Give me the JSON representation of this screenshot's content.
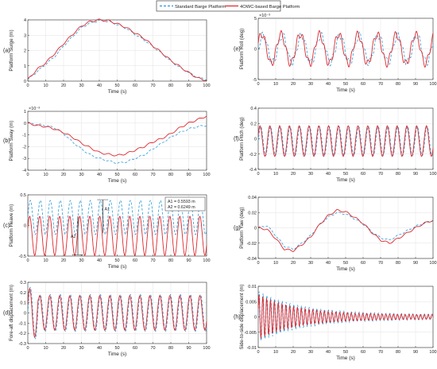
{
  "legend": {
    "items": [
      {
        "name": "Standard Barge Platform",
        "color": "#2a9ad8",
        "dash": true
      },
      {
        "name": "4OWC-based Barge Platform",
        "color": "#e0282d",
        "dash": false
      }
    ]
  },
  "chart_data": [
    {
      "id": "a",
      "type": "line",
      "panel_label": "(a)",
      "xlabel": "Time (s)",
      "ylabel": "Platform Surge (m)",
      "xlim": [
        0,
        100
      ],
      "ylim": [
        0,
        4
      ],
      "xticks": [
        0,
        10,
        20,
        30,
        40,
        50,
        60,
        70,
        80,
        90,
        100
      ],
      "yticks": [
        0,
        1,
        2,
        3,
        4
      ],
      "ytick_labels": [
        "0",
        "1",
        "2",
        "3",
        "4"
      ],
      "grid": true,
      "series": [
        {
          "name": "Standard Barge Platform",
          "x": [
            0,
            5,
            10,
            15,
            20,
            25,
            30,
            35,
            40,
            45,
            50,
            55,
            60,
            65,
            70,
            75,
            80,
            85,
            90,
            95,
            100
          ],
          "y": [
            0.1,
            0.6,
            1.1,
            1.6,
            2.3,
            2.9,
            3.5,
            3.8,
            3.95,
            3.9,
            3.7,
            3.45,
            3.05,
            2.7,
            2.25,
            1.8,
            1.3,
            0.9,
            0.55,
            0.25,
            0.1
          ]
        },
        {
          "name": "4OWC-based Barge Platform",
          "x": [
            0,
            5,
            10,
            15,
            20,
            25,
            30,
            35,
            40,
            45,
            50,
            55,
            60,
            65,
            70,
            75,
            80,
            85,
            90,
            95,
            100
          ],
          "y": [
            0.1,
            0.75,
            1.2,
            1.8,
            2.45,
            3.05,
            3.6,
            3.9,
            4.0,
            3.95,
            3.75,
            3.5,
            3.15,
            2.8,
            2.3,
            1.85,
            1.35,
            0.95,
            0.55,
            0.2,
            0.05
          ]
        }
      ]
    },
    {
      "id": "b",
      "type": "line",
      "panel_label": "(b)",
      "xlabel": "Time (s)",
      "ylabel": "Platform Sway (m)",
      "exponent": "10⁻³",
      "xlim": [
        0,
        100
      ],
      "ylim": [
        -4,
        1
      ],
      "xticks": [
        0,
        10,
        20,
        30,
        40,
        50,
        60,
        70,
        80,
        90,
        100
      ],
      "yticks": [
        -4,
        -3,
        -2,
        -1,
        0,
        1
      ],
      "ytick_labels": [
        "-4",
        "-3",
        "-2",
        "-1",
        "0",
        "1"
      ],
      "grid": true,
      "series": [
        {
          "name": "Standard Barge Platform",
          "x": [
            0,
            5,
            10,
            15,
            20,
            25,
            30,
            35,
            40,
            45,
            50,
            55,
            60,
            65,
            70,
            75,
            80,
            85,
            90,
            95,
            100
          ],
          "y": [
            0,
            -0.1,
            -0.2,
            -0.4,
            -0.9,
            -1.6,
            -2.2,
            -2.7,
            -3.0,
            -3.2,
            -3.4,
            -3.3,
            -3.0,
            -2.7,
            -2.2,
            -1.7,
            -1.2,
            -0.8,
            -0.5,
            -0.3,
            -0.2
          ]
        },
        {
          "name": "4OWC-based Barge Platform",
          "x": [
            0,
            5,
            10,
            15,
            20,
            25,
            30,
            35,
            40,
            45,
            50,
            55,
            60,
            65,
            70,
            75,
            80,
            85,
            90,
            95,
            100
          ],
          "y": [
            0,
            -0.2,
            -0.3,
            -0.5,
            -0.8,
            -1.2,
            -1.7,
            -2.1,
            -2.5,
            -2.65,
            -2.75,
            -2.6,
            -2.3,
            -2.0,
            -1.6,
            -1.3,
            -0.9,
            -0.4,
            0.0,
            0.3,
            0.6
          ]
        }
      ]
    },
    {
      "id": "c",
      "type": "line",
      "panel_label": "(c)",
      "xlabel": "Time (s)",
      "ylabel": "Platform Heave (m)",
      "xlim": [
        0,
        100
      ],
      "ylim": [
        -0.5,
        0.5
      ],
      "xticks": [
        0,
        10,
        20,
        30,
        40,
        50,
        60,
        70,
        80,
        90,
        100
      ],
      "yticks": [
        -0.5,
        0,
        0.5
      ],
      "ytick_labels": [
        "-0.5",
        "0",
        "0.5"
      ],
      "grid": true,
      "annotations": {
        "a1": "A1 = 0.5593 m",
        "a2": "A2 = 0.6249 m",
        "a1_label": "A1",
        "a2_label": "A2"
      },
      "series": [
        {
          "name": "Standard Barge Platform",
          "period": 5.6,
          "offset": 0.13,
          "amplitude": 0.28
        },
        {
          "name": "4OWC-based Barge Platform",
          "period": 5.6,
          "offset": -0.17,
          "amplitude": 0.32
        }
      ]
    },
    {
      "id": "d",
      "type": "line",
      "panel_label": "(d)",
      "xlabel": "Time (s)",
      "ylabel": "Fore-aft displacement  (m)",
      "xlim": [
        0,
        100
      ],
      "ylim": [
        -0.3,
        0.3
      ],
      "xticks": [
        0,
        10,
        20,
        30,
        40,
        50,
        60,
        70,
        80,
        90,
        100
      ],
      "yticks": [
        -0.3,
        -0.2,
        -0.1,
        0,
        0.1,
        0.2,
        0.3
      ],
      "ytick_labels": [
        "-0.3",
        "-0.2",
        "-0.1",
        "0",
        "0.1",
        "0.2",
        "0.3"
      ],
      "grid": true,
      "series": [
        {
          "name": "Standard Barge Platform",
          "period": 5.6,
          "offset": 0,
          "amplitude": 0.18
        },
        {
          "name": "4OWC-based Barge Platform",
          "period": 5.6,
          "offset": 0,
          "amplitude": 0.17
        }
      ]
    },
    {
      "id": "e",
      "type": "line",
      "panel_label": "(e)",
      "xlabel": "Time (s)",
      "ylabel": "Platform Roll (deg)",
      "exponent": "10⁻³",
      "xlim": [
        0,
        100
      ],
      "ylim": [
        -5,
        5
      ],
      "xticks": [
        0,
        10,
        20,
        30,
        40,
        50,
        60,
        70,
        80,
        90,
        100
      ],
      "yticks": [
        -5,
        0,
        5
      ],
      "ytick_labels": [
        "-5",
        "0",
        "5"
      ],
      "grid": true,
      "series": [
        {
          "name": "Standard Barge Platform",
          "period": 11,
          "offset": 0,
          "amplitude": 2.2
        },
        {
          "name": "4OWC-based Barge Platform",
          "period": 11,
          "offset": 0,
          "amplitude": 2.4
        }
      ]
    },
    {
      "id": "f",
      "type": "line",
      "panel_label": "(f)",
      "xlabel": "Time (s)",
      "ylabel": "Platform Pitch (deg)",
      "xlim": [
        0,
        100
      ],
      "ylim": [
        -0.4,
        0.4
      ],
      "xticks": [
        0,
        10,
        20,
        30,
        40,
        50,
        60,
        70,
        80,
        90,
        100
      ],
      "yticks": [
        -0.4,
        -0.2,
        0,
        0.2,
        0.4
      ],
      "ytick_labels": [
        "-0.4",
        "-0.2",
        "0",
        "0.2",
        "0.4"
      ],
      "grid": true,
      "series": [
        {
          "name": "Standard Barge Platform",
          "period": 5.6,
          "offset": -0.03,
          "amplitude": 0.19
        },
        {
          "name": "4OWC-based Barge Platform",
          "period": 5.6,
          "offset": -0.03,
          "amplitude": 0.2
        }
      ]
    },
    {
      "id": "g",
      "type": "line",
      "panel_label": "(g)",
      "xlabel": "Time (s)",
      "ylabel": "Platform Yaw (deg)",
      "xlim": [
        0,
        100
      ],
      "ylim": [
        -0.04,
        0.04
      ],
      "xticks": [
        0,
        10,
        20,
        30,
        40,
        50,
        60,
        70,
        80,
        90,
        100
      ],
      "yticks": [
        -0.04,
        -0.02,
        0,
        0.02,
        0.04
      ],
      "ytick_labels": [
        "-0.04",
        "-0.02",
        "0",
        "0.02",
        "0.04"
      ],
      "grid": true,
      "series": [
        {
          "name": "Standard Barge Platform",
          "x": [
            0,
            5,
            10,
            15,
            20,
            25,
            30,
            35,
            40,
            45,
            50,
            55,
            60,
            65,
            70,
            75,
            80,
            85,
            90,
            95,
            100
          ],
          "y": [
            0,
            0.003,
            -0.01,
            -0.024,
            -0.028,
            -0.02,
            -0.01,
            0.004,
            0.014,
            0.02,
            0.018,
            0.012,
            0.005,
            -0.005,
            -0.013,
            -0.016,
            -0.01,
            -0.004,
            0.002,
            0.006,
            0.01
          ]
        },
        {
          "name": "4OWC-based Barge Platform",
          "x": [
            0,
            5,
            10,
            15,
            20,
            25,
            30,
            35,
            40,
            45,
            50,
            55,
            60,
            65,
            70,
            75,
            80,
            85,
            90,
            95,
            100
          ],
          "y": [
            0,
            -0.002,
            -0.014,
            -0.028,
            -0.03,
            -0.022,
            -0.012,
            0.004,
            0.016,
            0.023,
            0.021,
            0.014,
            0.006,
            -0.006,
            -0.016,
            -0.02,
            -0.014,
            -0.007,
            0.0,
            0.006,
            0.01
          ]
        }
      ]
    },
    {
      "id": "h",
      "type": "line",
      "panel_label": "(h)",
      "xlabel": "Time (s)",
      "ylabel": "Side-to-side displacement  (m)",
      "xlim": [
        0,
        100
      ],
      "ylim": [
        -0.01,
        0.01
      ],
      "xticks": [
        0,
        10,
        20,
        30,
        40,
        50,
        60,
        70,
        80,
        90,
        100
      ],
      "yticks": [
        -0.01,
        -0.005,
        0,
        0.005,
        0.01
      ],
      "ytick_labels": [
        "-0.01",
        "-0.005",
        "0",
        "0.005",
        "0.01"
      ],
      "grid": true,
      "series": [
        {
          "name": "Standard Barge Platform",
          "period": 2.2,
          "offset": 0,
          "amplitude": 0.0085,
          "decay": 25,
          "floor": 0.0008
        },
        {
          "name": "4OWC-based Barge Platform",
          "period": 2.2,
          "offset": 0,
          "amplitude": 0.0075,
          "decay": 22,
          "floor": 0.0007
        }
      ]
    }
  ]
}
